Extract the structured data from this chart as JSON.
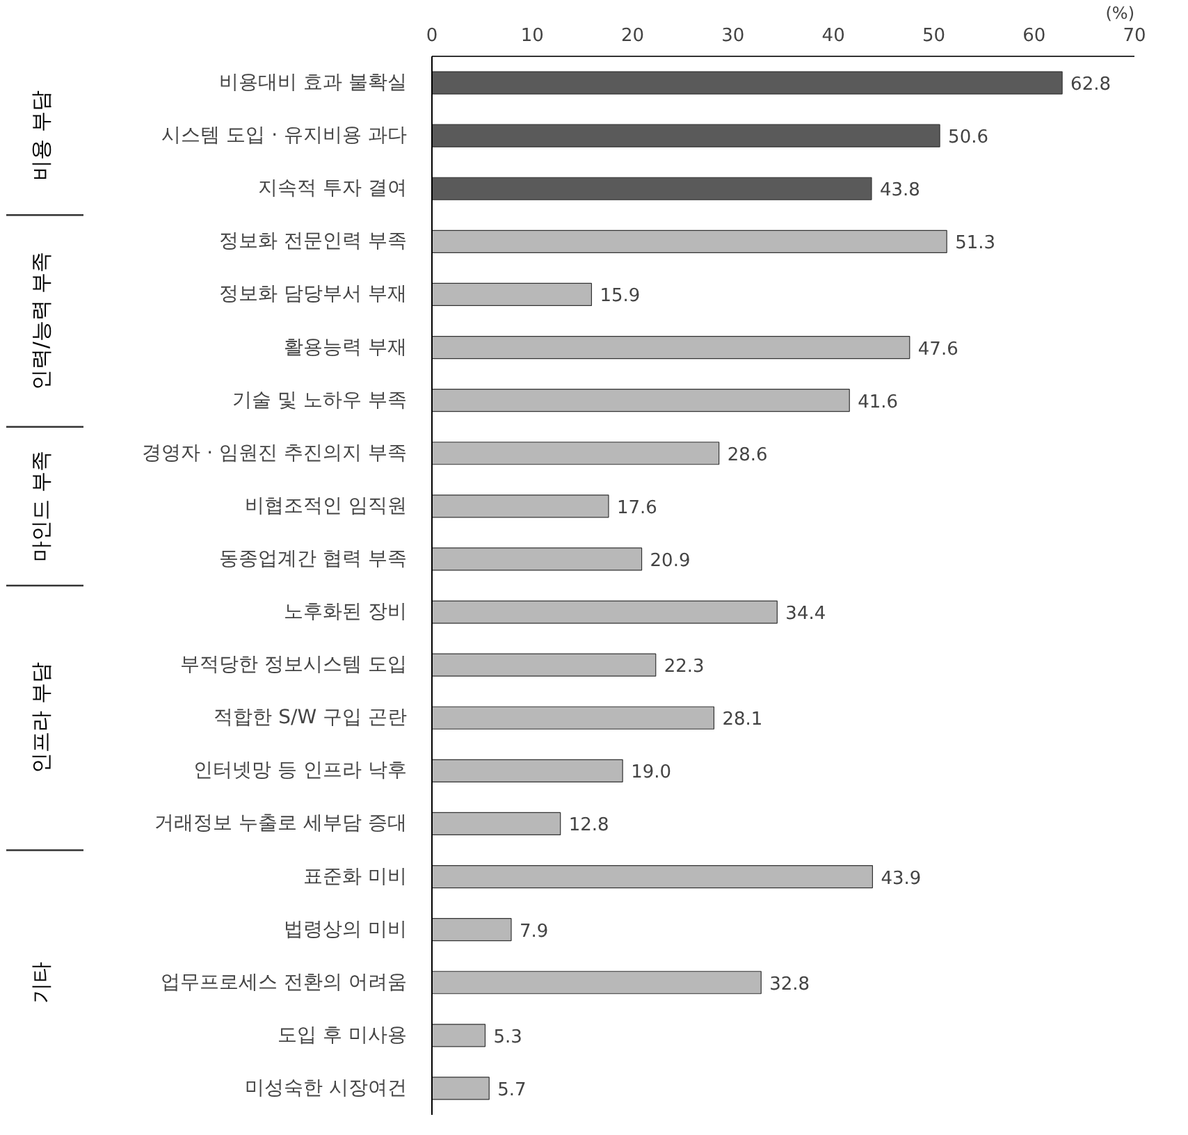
{
  "chart_data": {
    "type": "bar",
    "orientation": "horizontal",
    "xlabel": "(%)",
    "categories": [
      "비용대비 효과 불확실",
      "시스템 도입 · 유지비용 과다",
      "지속적 투자 결여",
      "정보화 전문인력 부족",
      "정보화 담당부서 부재",
      "활용능력 부재",
      "기술 및 노하우 부족",
      "경영자 · 임원진 추진의지 부족",
      "비협조적인 임직원",
      "동종업계간 협력 부족",
      "노후화된 장비",
      "부적당한 정보시스템 도입",
      "적합한 S/W 구입 곤란",
      "인터넷망 등 인프라 낙후",
      "거래정보 누출로 세부담 증대",
      "표준화 미비",
      "법령상의 미비",
      "업무프로세스 전환의 어려움",
      "도입 후 미사용",
      "미성숙한 시장여건"
    ],
    "values": [
      62.8,
      50.6,
      43.8,
      51.3,
      15.9,
      47.6,
      41.6,
      28.6,
      17.6,
      20.9,
      34.4,
      22.3,
      28.1,
      19.0,
      12.8,
      43.9,
      7.9,
      32.8,
      5.3,
      5.7
    ],
    "value_labels": [
      "62.8",
      "50.6",
      "43.8",
      "51.3",
      "15.9",
      "47.6",
      "41.6",
      "28.6",
      "17.6",
      "20.9",
      "34.4",
      "22.3",
      "28.1",
      "19.0",
      "12.8",
      "43.9",
      "7.9",
      "32.8",
      "5.3",
      "5.7"
    ],
    "colors": [
      "#5a5a5a",
      "#5a5a5a",
      "#5a5a5a",
      "#b8b8b8",
      "#b8b8b8",
      "#b8b8b8",
      "#b8b8b8",
      "#b8b8b8",
      "#b8b8b8",
      "#b8b8b8",
      "#b8b8b8",
      "#b8b8b8",
      "#b8b8b8",
      "#b8b8b8",
      "#b8b8b8",
      "#b8b8b8",
      "#b8b8b8",
      "#b8b8b8",
      "#b8b8b8",
      "#b8b8b8"
    ],
    "xlim": [
      0,
      70
    ],
    "xticks": [
      0,
      10,
      20,
      30,
      40,
      50,
      60,
      70
    ],
    "grid": false,
    "annotations": [
      "비용 부담",
      "인력/능력 부족",
      "마인드 부족",
      "인프라 부담",
      "기타"
    ]
  }
}
